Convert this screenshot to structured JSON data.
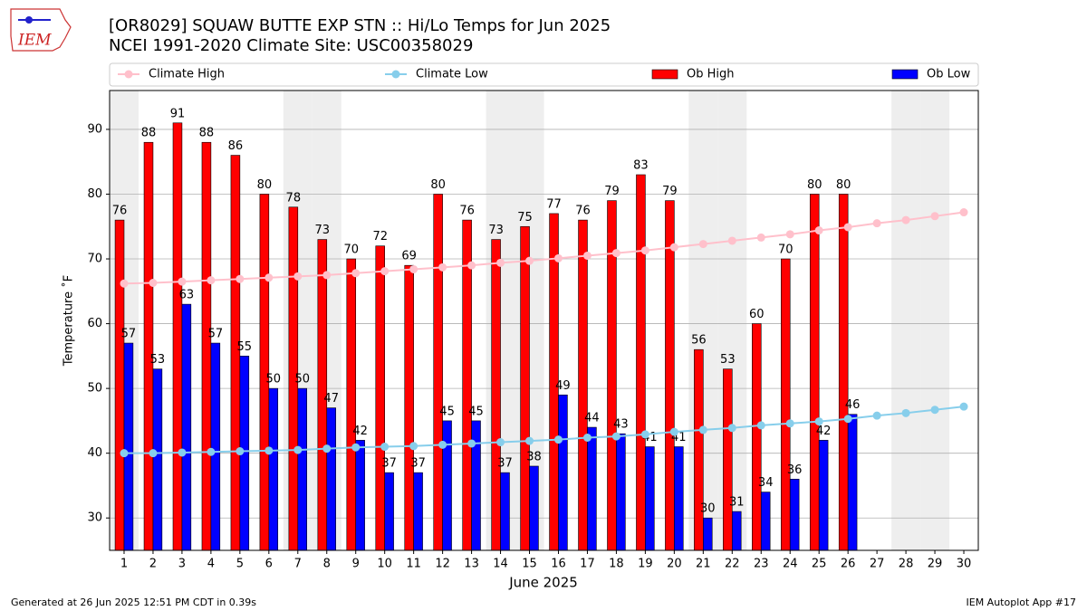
{
  "logo_text": "IEM",
  "chart_data": {
    "type": "bar",
    "title": "[OR8029] SQUAW BUTTE EXP STN :: Hi/Lo Temps for Jun 2025",
    "subtitle": "NCEI 1991-2020 Climate Site: USC00358029",
    "x_label": "June 2025",
    "y_label": "Temperature ˚F",
    "x": [
      1,
      2,
      3,
      4,
      5,
      6,
      7,
      8,
      9,
      10,
      11,
      12,
      13,
      14,
      15,
      16,
      17,
      18,
      19,
      20,
      21,
      22,
      23,
      24,
      25,
      26,
      27,
      28,
      29,
      30
    ],
    "xlim": [
      0.5,
      30.5
    ],
    "xticks": [
      1,
      2,
      3,
      4,
      5,
      6,
      7,
      8,
      9,
      10,
      11,
      12,
      13,
      14,
      15,
      16,
      17,
      18,
      19,
      20,
      21,
      22,
      23,
      24,
      25,
      26,
      27,
      28,
      29,
      30
    ],
    "ylim": [
      25,
      96
    ],
    "yticks": [
      30,
      40,
      50,
      60,
      70,
      80,
      90
    ],
    "grid": true,
    "weekend_days": [
      1,
      7,
      8,
      14,
      15,
      21,
      22,
      28,
      29
    ],
    "series": [
      {
        "name": "Climate High",
        "kind": "line",
        "color": "#ffc0cb",
        "values": [
          66.2,
          66.3,
          66.5,
          66.7,
          66.9,
          67.1,
          67.3,
          67.5,
          67.8,
          68.1,
          68.4,
          68.7,
          69.0,
          69.4,
          69.7,
          70.1,
          70.5,
          70.9,
          71.3,
          71.8,
          72.3,
          72.8,
          73.3,
          73.8,
          74.4,
          74.9,
          75.5,
          76.0,
          76.6,
          77.2
        ]
      },
      {
        "name": "Climate Low",
        "kind": "line",
        "color": "#87ceeb",
        "values": [
          40.0,
          40.0,
          40.1,
          40.2,
          40.3,
          40.4,
          40.5,
          40.7,
          40.9,
          41.0,
          41.1,
          41.3,
          41.5,
          41.7,
          41.9,
          42.1,
          42.4,
          42.6,
          42.9,
          43.3,
          43.6,
          43.9,
          44.3,
          44.6,
          44.9,
          45.3,
          45.8,
          46.2,
          46.7,
          47.2
        ]
      },
      {
        "name": "Ob High",
        "kind": "bar",
        "color": "#ff0000",
        "values": [
          76,
          88,
          91,
          88,
          86,
          80,
          78,
          73,
          70,
          72,
          69,
          80,
          76,
          73,
          75,
          77,
          76,
          79,
          83,
          79,
          56,
          53,
          60,
          70,
          80,
          80,
          null,
          null,
          null,
          null
        ]
      },
      {
        "name": "Ob Low",
        "kind": "bar",
        "color": "#0000ff",
        "values": [
          57,
          53,
          63,
          57,
          55,
          50,
          50,
          47,
          42,
          37,
          37,
          45,
          45,
          37,
          38,
          49,
          44,
          43,
          41,
          41,
          30,
          31,
          34,
          36,
          42,
          46,
          null,
          null,
          null,
          null
        ]
      }
    ]
  },
  "footer": {
    "left": "Generated at 26 Jun 2025 12:51 PM CDT in 0.39s",
    "right": "IEM Autoplot App #17"
  }
}
